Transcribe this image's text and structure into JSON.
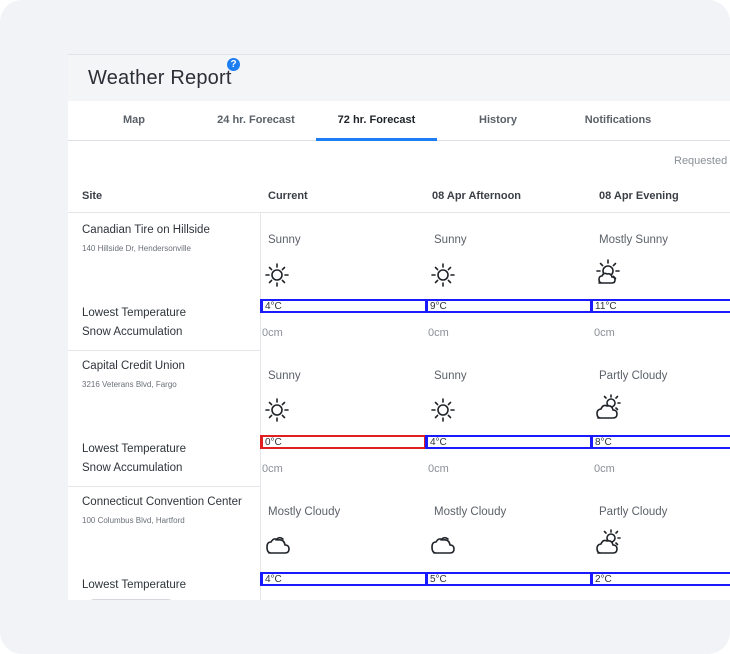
{
  "app": {
    "title": "Weather Report",
    "help_glyph": "?"
  },
  "tabs": [
    "Map",
    "24 hr. Forecast",
    "72 hr. Forecast",
    "History",
    "Notifications"
  ],
  "active_tab": "72 hr. Forecast",
  "requested_label": "Requested",
  "columns": [
    "Site",
    "Current",
    "08 Apr Afternoon",
    "08 Apr Evening"
  ],
  "metric_labels": {
    "low_temp": "Lowest Temperature",
    "snow": "Snow Accumulation"
  },
  "sites": [
    {
      "name": "Canadian Tire on Hillside",
      "address": "140 Hillside Dr, Hendersonville",
      "forecasts": [
        {
          "condition": "Sunny",
          "icon": "sun-icon",
          "low_temp": "4°C",
          "temp_alert": false,
          "snow": "0cm"
        },
        {
          "condition": "Sunny",
          "icon": "sun-icon",
          "low_temp": "9°C",
          "temp_alert": false,
          "snow": "0cm"
        },
        {
          "condition": "Mostly Sunny",
          "icon": "mostly-sunny-icon",
          "low_temp": "11°C",
          "temp_alert": false,
          "snow": "0cm"
        }
      ]
    },
    {
      "name": "Capital Credit Union",
      "address": "3216 Veterans Blvd, Fargo",
      "forecasts": [
        {
          "condition": "Sunny",
          "icon": "sun-icon",
          "low_temp": "0°C",
          "temp_alert": true,
          "snow": "0cm"
        },
        {
          "condition": "Sunny",
          "icon": "sun-icon",
          "low_temp": "4°C",
          "temp_alert": false,
          "snow": "0cm"
        },
        {
          "condition": "Partly Cloudy",
          "icon": "partly-cloudy-icon",
          "low_temp": "8°C",
          "temp_alert": false,
          "snow": "0cm"
        }
      ]
    },
    {
      "name": "Connecticut Convention Center",
      "address": "100 Columbus Blvd, Hartford",
      "forecasts": [
        {
          "condition": "Mostly Cloudy",
          "icon": "cloud-icon",
          "low_temp": "4°C",
          "temp_alert": false,
          "snow": ""
        },
        {
          "condition": "Mostly Cloudy",
          "icon": "cloud-icon",
          "low_temp": "5°C",
          "temp_alert": false,
          "snow": ""
        },
        {
          "condition": "Partly Cloudy",
          "icon": "partly-cloudy-icon",
          "low_temp": "2°C",
          "temp_alert": false,
          "snow": ""
        }
      ]
    }
  ],
  "colors": {
    "accent": "#1d7df2",
    "temp_border": "#1a1aff",
    "temp_alert_border": "#e02020"
  }
}
